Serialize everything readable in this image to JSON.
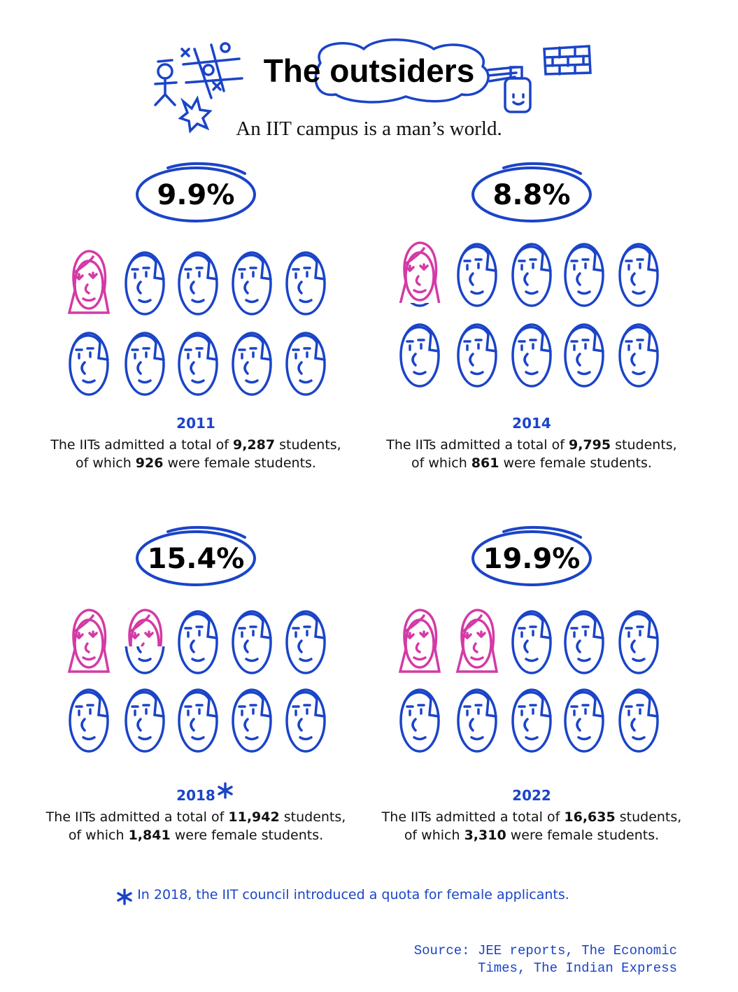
{
  "title": "The outsiders",
  "subtitle": "An IIT campus is a man’s world.",
  "chart_data": [
    {
      "type": "pictograph",
      "value": 9.9,
      "value_label": "9.9%",
      "year": "2011",
      "text_before_total": "The IITs admitted a total of",
      "total": "9,287",
      "text_after_total": "students,",
      "text_before_female": "of which",
      "female": "926",
      "text_after_female": "were female students."
    },
    {
      "type": "pictograph",
      "value": 8.8,
      "value_label": "8.8%",
      "year": "2014",
      "text_before_total": "The IITs admitted a total of",
      "total": "9,795",
      "text_after_total": "students,",
      "text_before_female": "of which",
      "female": "861",
      "text_after_female": "were female students."
    },
    {
      "type": "pictograph",
      "value": 15.4,
      "value_label": "15.4%",
      "year": "2018",
      "text_before_total": "The IITs admitted a total of",
      "total": "11,942",
      "text_after_total": "students,",
      "text_before_female": "of which",
      "female": "1,841",
      "text_after_female": "were female students."
    },
    {
      "type": "pictograph",
      "value": 19.9,
      "value_label": "19.9%",
      "year": "2022",
      "text_before_total": "The IITs admitted a total of",
      "total": "16,635",
      "text_after_total": "students,",
      "text_before_female": "of which",
      "female": "3,310",
      "text_after_female": "were female students."
    }
  ],
  "footnote": "In 2018, the IIT council introduced a quota for female applicants.",
  "source_line1": "Source: JEE reports, The Economic",
  "source_line2": "Times, The Indian Express"
}
